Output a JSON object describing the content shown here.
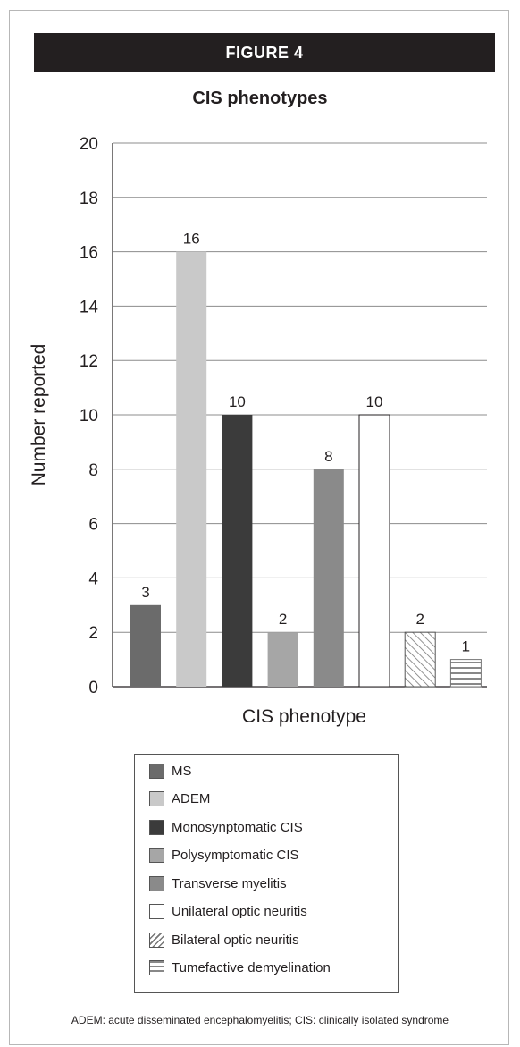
{
  "figure_label": "FIGURE 4",
  "footnote": "ADEM: acute disseminated encephalomyelitis; CIS: clinically isolated syndrome",
  "colors": {
    "banner": "#231f20",
    "ms": "#6b6b6b",
    "adem": "#c9c9c9",
    "mono": "#3b3b3b",
    "poly": "#a6a6a6",
    "transverse": "#8a8a8a",
    "unilateral": "#ffffff",
    "bilateral": "#ffffff",
    "tumefactive": "#ffffff"
  },
  "chart_data": {
    "type": "bar",
    "title": "CIS phenotypes",
    "xlabel": "CIS phenotype",
    "ylabel": "Number reported",
    "ylim": [
      0,
      20
    ],
    "yticks": [
      "0",
      "2",
      "4",
      "6",
      "8",
      "10",
      "12",
      "14",
      "16",
      "18",
      "20"
    ],
    "grid": true,
    "legend_position": "bottom",
    "categories": [
      "MS",
      "ADEM",
      "Monosynptomatic CIS",
      "Polysymptomatic CIS",
      "Transverse myelitis",
      "Unilateral optic neuritis",
      "Bilateral optic neuritis",
      "Tumefactive demyelination"
    ],
    "values": [
      3,
      16,
      10,
      2,
      8,
      10,
      2,
      1
    ],
    "value_labels": [
      "3",
      "16",
      "10",
      "2",
      "8",
      "10",
      "2",
      "1"
    ],
    "fills": [
      "solid",
      "solid",
      "solid",
      "solid",
      "solid",
      "outline",
      "diagonal-hatch",
      "horizontal-stripes"
    ],
    "color_keys": [
      "ms",
      "adem",
      "mono",
      "poly",
      "transverse",
      "unilateral",
      "bilateral",
      "tumefactive"
    ]
  }
}
